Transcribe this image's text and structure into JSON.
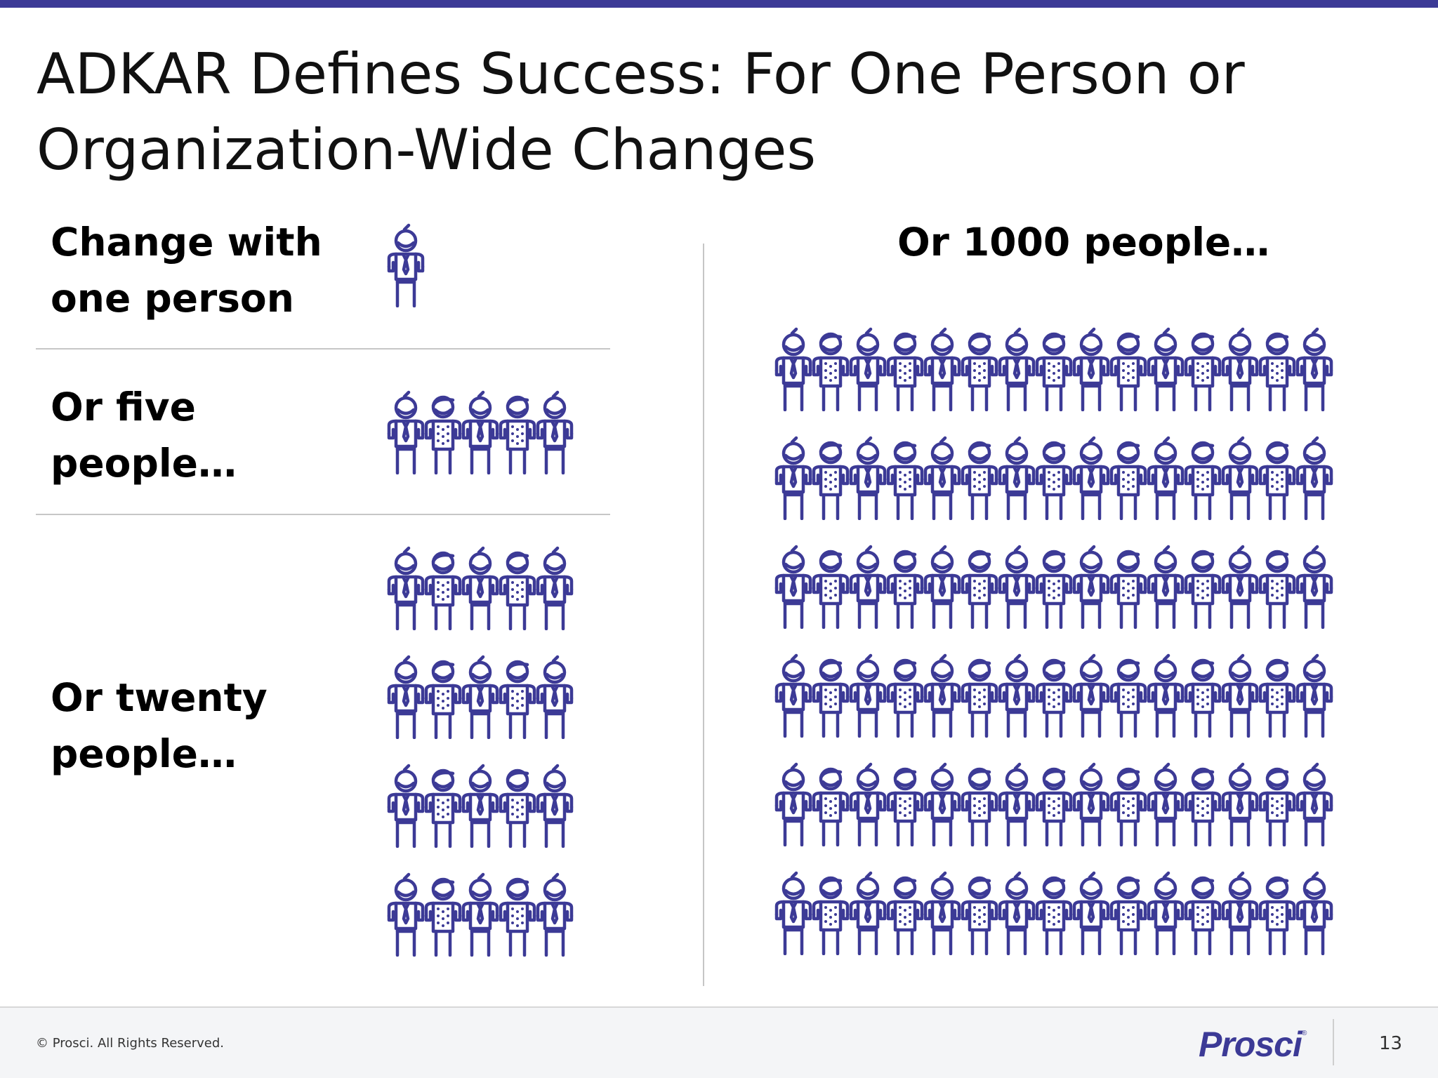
{
  "title": "ADKAR Defines Success: For One Person or Organization-Wide Changes",
  "sections": {
    "one": {
      "label": "Change with one person",
      "count": 1
    },
    "five": {
      "label": "Or five people…",
      "count": 5
    },
    "twenty": {
      "label": "Or twenty people…",
      "count": 20
    },
    "thousand": {
      "label": "Or 1000 people…",
      "count": 90
    }
  },
  "footer": {
    "copyright": "© Prosci. All Rights Reserved.",
    "logo_text": "Prosci",
    "page_number": "13"
  },
  "colors": {
    "accent": "#3c3a96",
    "icon": "#3c3a96",
    "divider": "#c6c6c6"
  }
}
